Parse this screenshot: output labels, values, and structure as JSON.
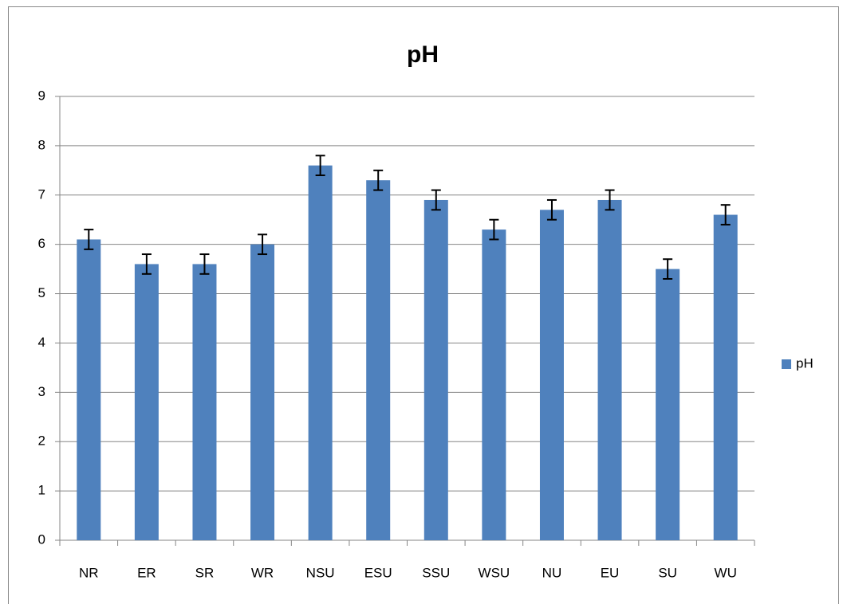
{
  "chart_data": {
    "type": "bar",
    "title": "pH",
    "categories": [
      "NR",
      "ER",
      "SR",
      "WR",
      "NSU",
      "ESU",
      "SSU",
      "WSU",
      "NU",
      "EU",
      "SU",
      "WU"
    ],
    "series": [
      {
        "name": "pH",
        "color": "#4f81bd",
        "values": [
          6.1,
          5.6,
          5.6,
          6.0,
          7.6,
          7.3,
          6.9,
          6.3,
          6.7,
          6.9,
          5.5,
          6.6
        ],
        "errors": [
          0.2,
          0.2,
          0.2,
          0.2,
          0.2,
          0.2,
          0.2,
          0.2,
          0.2,
          0.2,
          0.2,
          0.2
        ]
      }
    ],
    "ylim": [
      0,
      9
    ],
    "yticks": [
      0,
      1,
      2,
      3,
      4,
      5,
      6,
      7,
      8,
      9
    ],
    "grid": true,
    "legend": "right"
  }
}
